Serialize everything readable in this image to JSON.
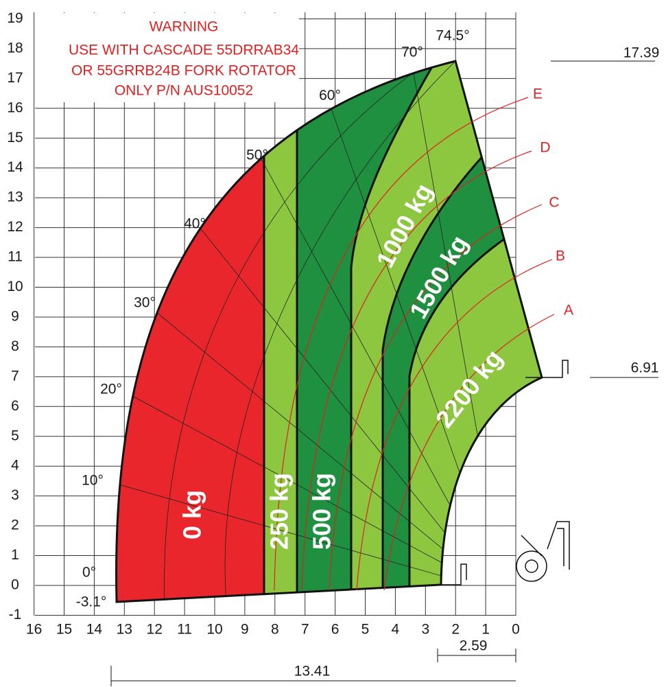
{
  "warning": [
    "WARNING",
    "USE WITH CASCADE 55DRRAB34",
    "OR 55GRRB24B FORK ROTATOR",
    "ONLY P/N AUS10052"
  ],
  "y_axis": [
    "19",
    "18",
    "17",
    "16",
    "15",
    "14",
    "13",
    "12",
    "11",
    "10",
    "9",
    "8",
    "7",
    "6",
    "5",
    "4",
    "3",
    "2",
    "1",
    "0",
    "-1"
  ],
  "x_axis": [
    "16",
    "15",
    "14",
    "13",
    "12",
    "11",
    "10",
    "9",
    "8",
    "7",
    "6",
    "5",
    "4",
    "3",
    "2",
    "1",
    "0"
  ],
  "angles": [
    "74.5°",
    "70°",
    "60°",
    "50°",
    "40°",
    "30°",
    "20°",
    "10°",
    "0°",
    "-3.1°"
  ],
  "zones": [
    "0 kg",
    "250 kg",
    "500 kg",
    "1000 kg",
    "1500 kg",
    "2200 kg"
  ],
  "curves": [
    "A",
    "B",
    "C",
    "D",
    "E"
  ],
  "dimensions": [
    "17.39",
    "6.91",
    "2.59",
    "13.41"
  ]
}
